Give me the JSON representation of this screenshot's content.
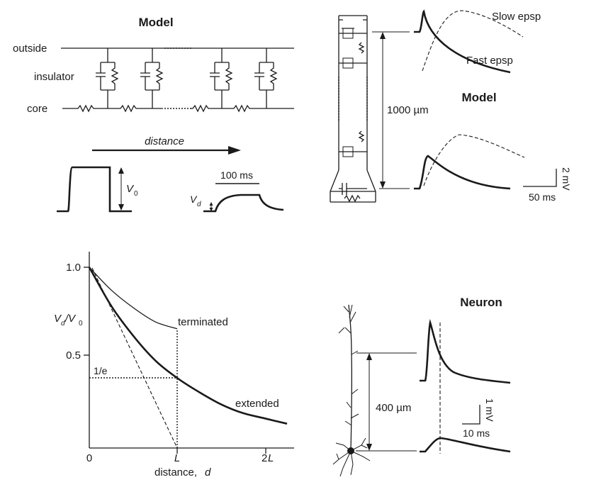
{
  "panel_a": {
    "title": "Model",
    "outside_label": "outside",
    "insulator_label": "insulator",
    "core_label": "core",
    "distance_label": "distance",
    "v0_label": "V",
    "v0_sub": "0",
    "vd_label": "V",
    "vd_sub": "d",
    "time_scale": "100 ms"
  },
  "panel_b": {
    "slow_label": "Slow epsp",
    "fast_label": "Fast epsp",
    "model_label": "Model",
    "length_label": "1000 µm",
    "v_scale": "2 mV",
    "t_scale": "50 ms"
  },
  "panel_c": {
    "y_ticks": [
      "1.0",
      "0.5"
    ],
    "y_label_main": "V",
    "y_label_sub1": "d",
    "y_label_sep": "/V",
    "y_label_sub2": "0",
    "inv_e_label": "1/e",
    "terminated_label": "terminated",
    "extended_label": "extended",
    "x_tick_0": "0",
    "x_tick_L": "L",
    "x_tick_2L_num": "2",
    "x_tick_2L_var": "L",
    "x_label_text": "distance, ",
    "x_label_var": "d"
  },
  "panel_d": {
    "title": "Neuron",
    "length_label": "400 µm",
    "v_scale": "1 mV",
    "t_scale": "10 ms"
  },
  "chart_data": {
    "type": "line",
    "ylabel": "Vd/V0",
    "xlabel": "distance, d",
    "x_ticks": [
      "0",
      "L",
      "2L"
    ],
    "y_ticks": [
      "1.0",
      "0.5"
    ],
    "series": [
      {
        "name": "terminated",
        "x": [
          0,
          0.25,
          0.5,
          0.75,
          1.0
        ],
        "y": [
          1.0,
          0.87,
          0.77,
          0.69,
          0.65
        ]
      },
      {
        "name": "extended",
        "x": [
          0,
          0.25,
          0.5,
          0.75,
          1.0,
          1.25,
          1.5,
          1.75,
          2.0,
          2.25
        ],
        "y": [
          1.0,
          0.78,
          0.61,
          0.47,
          0.37,
          0.29,
          0.22,
          0.17,
          0.14,
          0.11
        ]
      }
    ],
    "annotations": [
      "1/e"
    ]
  }
}
